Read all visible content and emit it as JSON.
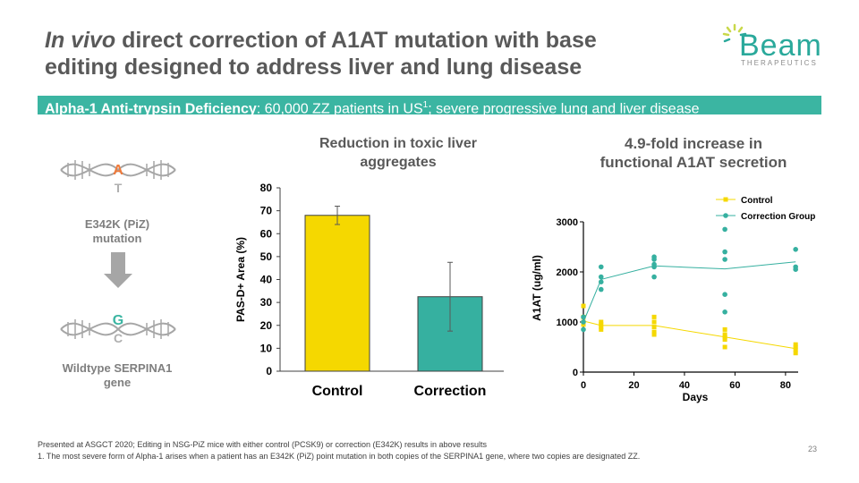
{
  "title": {
    "italic": "In vivo",
    "rest": " direct correction of A1AT mutation with base",
    "line2": "editing designed to address liver and lung disease"
  },
  "logo": {
    "word": "Beam",
    "sub": "THERAPEUTICS"
  },
  "banner": {
    "bold": "Alpha-1 Anti-trypsin Deficiency",
    "text": ": 60,000 ZZ patients in US",
    "sup": "1",
    "rest": "; severe progressive lung and liver disease"
  },
  "dna": {
    "top_letters": [
      "A",
      "T"
    ],
    "bottom_letters": [
      "G",
      "C"
    ],
    "mutation_label_1": "E342K (PiZ)",
    "mutation_label_2": "mutation",
    "wildtype_label_1": "Wildtype SERPINA1",
    "wildtype_label_2": "gene",
    "colors": {
      "A": "#f07a3a",
      "G": "#3bb5a2",
      "faded": "#b0b0b0",
      "arrow": "#a6a6a6"
    }
  },
  "chart_titles": {
    "bar_1": "Reduction in toxic liver",
    "bar_2": "aggregates",
    "line_1": "4.9-fold increase in",
    "line_2": "functional A1AT secretion"
  },
  "chart_data": [
    {
      "type": "bar",
      "categories": [
        "Control",
        "Correction"
      ],
      "values": [
        68,
        32.5
      ],
      "error": [
        4,
        15
      ],
      "colors": [
        "#f5d800",
        "#36b0a0"
      ],
      "ylabel": "PAS-D+ Area (%)",
      "ylim": [
        0,
        80
      ],
      "yticks": [
        0,
        10,
        20,
        30,
        40,
        50,
        60,
        70,
        80
      ]
    },
    {
      "type": "scatter",
      "xlabel": "Days",
      "ylabel": "A1AT (ug/ml)",
      "xlim": [
        0,
        85
      ],
      "ylim": [
        0,
        3000
      ],
      "xticks": [
        0,
        20,
        40,
        60,
        80
      ],
      "yticks": [
        0,
        1000,
        2000,
        3000
      ],
      "legend_position": "top-right",
      "series": [
        {
          "name": "Control",
          "color": "#f5d800",
          "points": [
            [
              0,
              1320
            ],
            [
              0,
              1100
            ],
            [
              0,
              1000
            ],
            [
              0,
              950
            ],
            [
              7,
              1000
            ],
            [
              7,
              950
            ],
            [
              7,
              900
            ],
            [
              7,
              850
            ],
            [
              28,
              1100
            ],
            [
              28,
              1000
            ],
            [
              28,
              900
            ],
            [
              28,
              800
            ],
            [
              28,
              750
            ],
            [
              56,
              850
            ],
            [
              56,
              750
            ],
            [
              56,
              700
            ],
            [
              56,
              650
            ],
            [
              56,
              500
            ],
            [
              84,
              550
            ],
            [
              84,
              500
            ],
            [
              84,
              450
            ],
            [
              84,
              380
            ]
          ],
          "trend": [
            [
              0,
              1020
            ],
            [
              7,
              930
            ],
            [
              28,
              930
            ],
            [
              56,
              700
            ],
            [
              84,
              470
            ]
          ]
        },
        {
          "name": "Correction Group",
          "color": "#36b0a0",
          "points": [
            [
              0,
              1100
            ],
            [
              0,
              1000
            ],
            [
              0,
              850
            ],
            [
              7,
              2100
            ],
            [
              7,
              1900
            ],
            [
              7,
              1800
            ],
            [
              7,
              1650
            ],
            [
              28,
              2300
            ],
            [
              28,
              2250
            ],
            [
              28,
              2150
            ],
            [
              28,
              2100
            ],
            [
              28,
              1900
            ],
            [
              56,
              2850
            ],
            [
              56,
              2400
            ],
            [
              56,
              2250
            ],
            [
              56,
              1550
            ],
            [
              56,
              1200
            ],
            [
              84,
              2450
            ],
            [
              84,
              2100
            ],
            [
              84,
              2050
            ]
          ],
          "trend": [
            [
              0,
              1000
            ],
            [
              7,
              1850
            ],
            [
              28,
              2120
            ],
            [
              56,
              2060
            ],
            [
              84,
              2200
            ]
          ]
        }
      ]
    }
  ],
  "footer": {
    "line1": "Presented at ASGCT 2020;  Editing in NSG-PiZ mice with either control (PCSK9) or correction (E342K) results in above results",
    "line2": "1. The most severe form of Alpha-1 arises when a patient has an E342K (PiZ) point mutation in both copies of the SERPINA1 gene, where two copies are designated ZZ.",
    "page": "23"
  }
}
